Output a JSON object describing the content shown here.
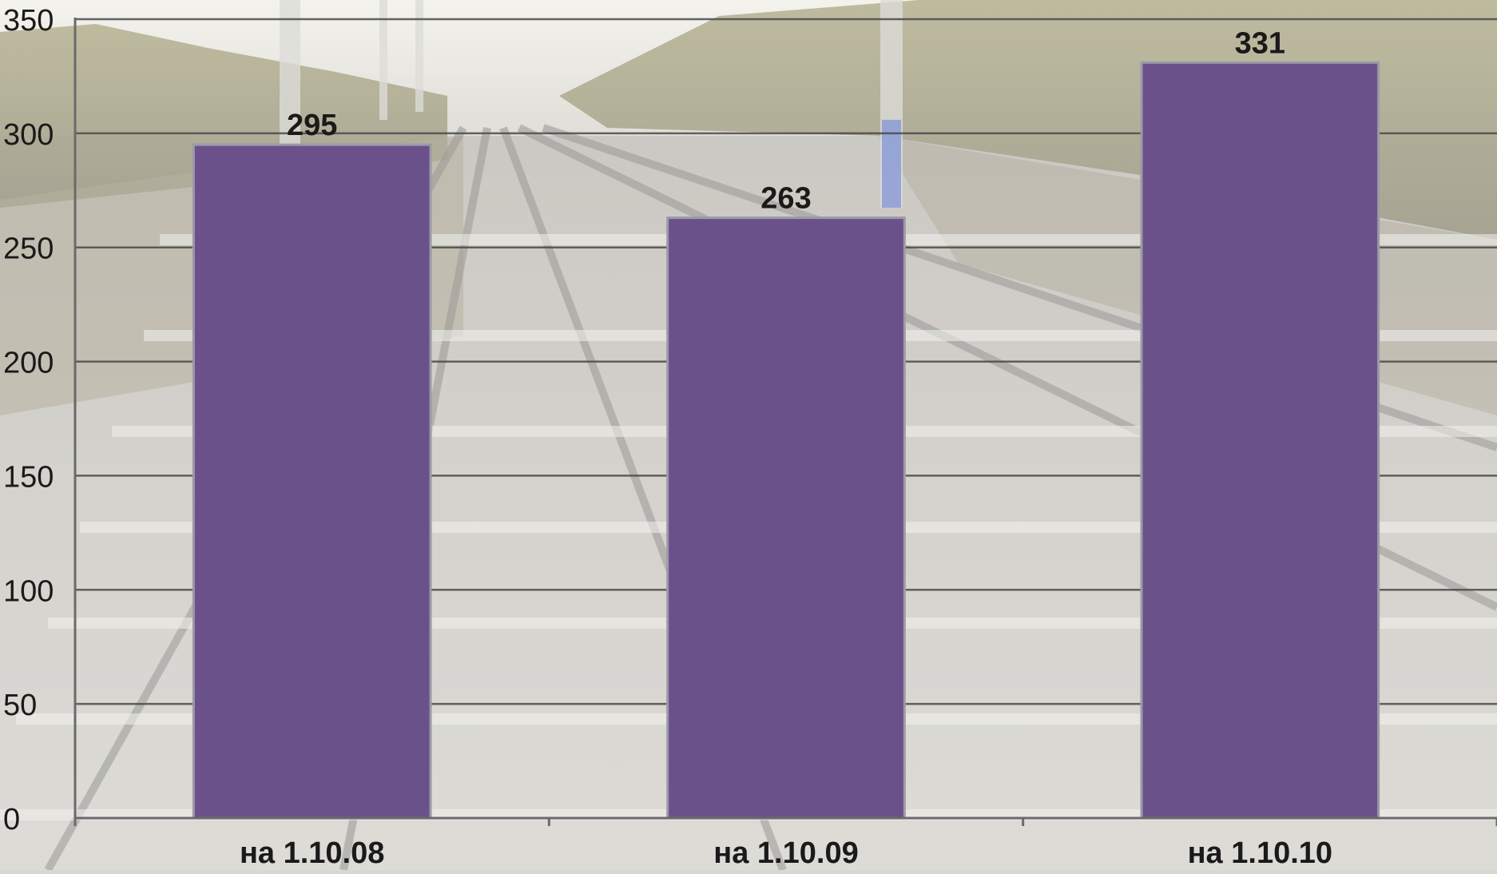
{
  "chart_data": {
    "type": "bar",
    "title": "",
    "xlabel": "",
    "ylabel": "",
    "categories": [
      "на 1.10.08",
      "на 1.10.09",
      "на 1.10.10"
    ],
    "values": [
      295,
      263,
      331
    ],
    "data_labels": [
      "295",
      "263",
      "331"
    ],
    "ylim": [
      0,
      350
    ],
    "yticks": [
      0,
      50,
      100,
      150,
      200,
      250,
      300,
      350
    ],
    "ytick_labels": [
      "0",
      "50",
      "100",
      "150",
      "200",
      "250",
      "300",
      "350"
    ],
    "grid": true,
    "legend": "none",
    "bar_color": "#6b518a",
    "background": "faded photograph of railway tracks with autumn forest"
  }
}
